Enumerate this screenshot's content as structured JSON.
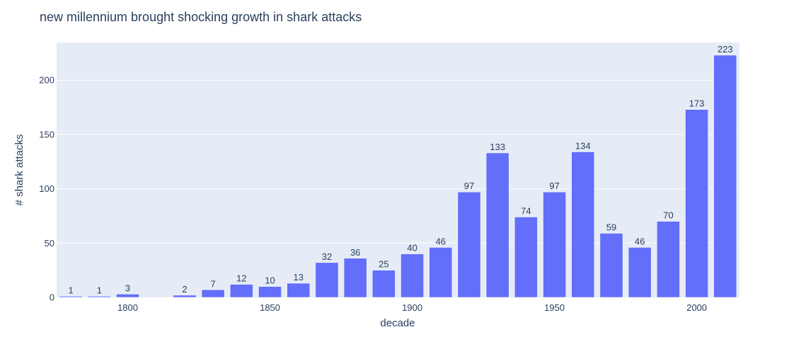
{
  "chart_data": {
    "type": "bar",
    "title": "new millennium brought shocking growth in shark attacks",
    "xlabel": "decade",
    "ylabel": "# shark attacks",
    "x": [
      1780,
      1790,
      1800,
      1810,
      1820,
      1830,
      1840,
      1850,
      1860,
      1870,
      1880,
      1890,
      1900,
      1910,
      1920,
      1930,
      1940,
      1950,
      1960,
      1970,
      1980,
      1990,
      2000,
      2010
    ],
    "values": [
      1,
      1,
      3,
      0,
      2,
      7,
      12,
      10,
      13,
      32,
      36,
      25,
      40,
      46,
      97,
      133,
      74,
      97,
      134,
      59,
      46,
      70,
      173,
      223
    ],
    "data_labels": [
      "1",
      "1",
      "3",
      "",
      "2",
      "7",
      "12",
      "10",
      "13",
      "32",
      "36",
      "25",
      "40",
      "46",
      "97",
      "133",
      "74",
      "97",
      "134",
      "59",
      "46",
      "70",
      "173",
      "223"
    ],
    "xticks": [
      1800,
      1850,
      1900,
      1950,
      2000
    ],
    "xtick_labels": [
      "1800",
      "1850",
      "1900",
      "1950",
      "2000"
    ],
    "yticks": [
      0,
      50,
      100,
      150,
      200
    ],
    "ytick_labels": [
      "0",
      "50",
      "100",
      "150",
      "200"
    ],
    "xlim": [
      1775,
      2015
    ],
    "ylim": [
      0,
      234.7
    ],
    "grid": true,
    "colors": {
      "bar": "#636efa",
      "plot_background": "#e5ecf6",
      "grid": "#ffffff",
      "text": "#2a3f5f"
    }
  }
}
